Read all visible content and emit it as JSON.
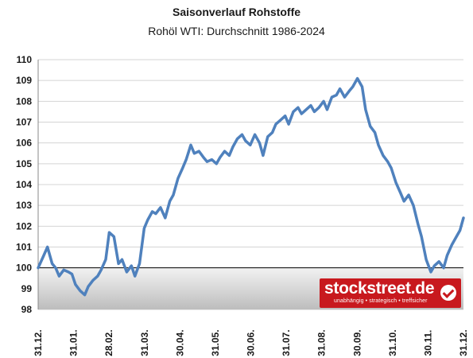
{
  "chart_data": {
    "type": "line",
    "title": "Saisonverlauf Rohstoffe",
    "subtitle": "Rohöl WTI: Durchschnitt 1986-2024",
    "xlabel": "",
    "ylabel": "",
    "baseline": 100,
    "ylim": [
      98,
      110
    ],
    "yticks": [
      "98",
      "99",
      "100",
      "101",
      "102",
      "103",
      "104",
      "105",
      "106",
      "107",
      "108",
      "109",
      "110"
    ],
    "xticks": [
      "31.12.",
      "31.01.",
      "28.02.",
      "31.03.",
      "30.04.",
      "31.05.",
      "30.06.",
      "31.07.",
      "31.08.",
      "30.09.",
      "31.10.",
      "30.11.",
      "31.12."
    ],
    "grid": true,
    "series": [
      {
        "color": "#4f81bd",
        "x": [
          0,
          4,
          8,
          12,
          15,
          18,
          22,
          26,
          29,
          32,
          36,
          40,
          43,
          47,
          51,
          54,
          58,
          61,
          65,
          69,
          72,
          76,
          80,
          83,
          87,
          91,
          94,
          98,
          101,
          105,
          109,
          113,
          116,
          120,
          124,
          127,
          131,
          134,
          138,
          142,
          145,
          149,
          153,
          156,
          160,
          164,
          167,
          171,
          175,
          178,
          182,
          186,
          190,
          193,
          197,
          201,
          204,
          208,
          212,
          215,
          219,
          223,
          226,
          230,
          234,
          237,
          241,
          245,
          248,
          252,
          256,
          259,
          263,
          267,
          270,
          274,
          278,
          281,
          285,
          289,
          292,
          296,
          300,
          303,
          307,
          311,
          314,
          318,
          322,
          326,
          329,
          333,
          337,
          340,
          344,
          348,
          351,
          355,
          359,
          362,
          365
        ],
        "values": [
          100.0,
          100.5,
          101.0,
          100.2,
          100.0,
          99.6,
          99.9,
          99.8,
          99.7,
          99.2,
          98.9,
          98.7,
          99.1,
          99.4,
          99.6,
          99.9,
          100.4,
          101.7,
          101.5,
          100.2,
          100.4,
          99.8,
          100.1,
          99.6,
          100.2,
          101.9,
          102.3,
          102.7,
          102.6,
          102.9,
          102.4,
          103.2,
          103.5,
          104.3,
          104.8,
          105.2,
          105.9,
          105.5,
          105.6,
          105.3,
          105.1,
          105.2,
          105.0,
          105.3,
          105.6,
          105.4,
          105.8,
          106.2,
          106.4,
          106.1,
          105.9,
          106.4,
          106.0,
          105.4,
          106.3,
          106.5,
          106.9,
          107.1,
          107.3,
          106.9,
          107.5,
          107.7,
          107.4,
          107.6,
          107.8,
          107.5,
          107.7,
          108.0,
          107.6,
          108.2,
          108.3,
          108.6,
          108.2,
          108.5,
          108.7,
          109.1,
          108.7,
          107.6,
          106.8,
          106.5,
          105.9,
          105.4,
          105.1,
          104.8,
          104.1,
          103.6,
          103.2,
          103.5,
          103.0,
          102.1,
          101.5,
          100.4,
          99.8,
          100.1,
          100.3,
          100.0,
          100.6,
          101.1,
          101.5,
          101.8,
          102.4
        ]
      }
    ]
  },
  "watermark": {
    "brand": "stockstreet.de",
    "tagline": "unabhängig • strategisch • treffsicher"
  }
}
